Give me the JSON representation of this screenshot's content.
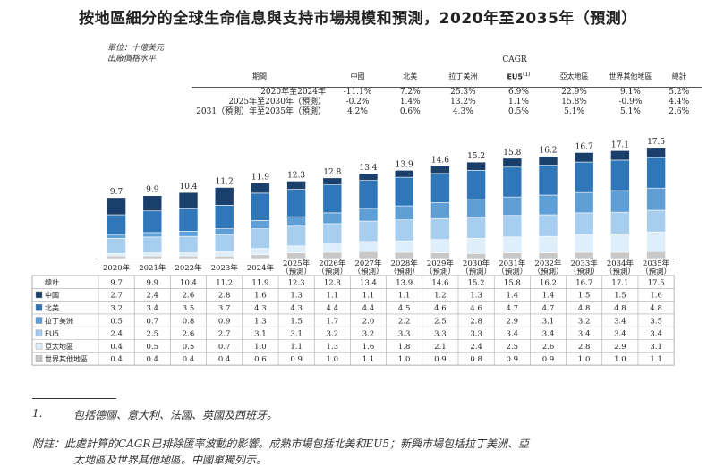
{
  "title": "按地區細分的全球生命信息與支持市場規模和預測，2020年至2035年（預測）",
  "unit_lines": [
    "單位：十億美元",
    "出廠價格水平"
  ],
  "cagr_table": {
    "group_label": "CAGR",
    "period_header": "期間",
    "columns": [
      "中國",
      "北美",
      "拉丁美洲",
      "EU5",
      "亞太地區",
      "世界其他地區",
      "總計"
    ],
    "eu5_superscript": "(1)",
    "rows": [
      {
        "period": "2020年至2024年",
        "values": [
          "-11.1%",
          "7.2%",
          "25.3%",
          "6.9%",
          "22.9%",
          "9.1%",
          "5.2%"
        ]
      },
      {
        "period": "2025年至2030年（預測）",
        "values": [
          "-0.2%",
          "1.4%",
          "13.2%",
          "1.1%",
          "15.8%",
          "-0.9%",
          "4.4%"
        ]
      },
      {
        "period": "2031（預測）年至2035年（預測）",
        "values": [
          "4.2%",
          "0.6%",
          "4.3%",
          "0.5%",
          "5.1%",
          "5.1%",
          "2.6%"
        ]
      }
    ]
  },
  "colors": {
    "中國": "#1b3f6b",
    "北美": "#2f77b9",
    "拉丁美洲": "#5f9fd6",
    "EU5": "#a7cdef",
    "亞太地區": "#deeefb",
    "世界其他地區": "#c8c8c8"
  },
  "chart_data": {
    "type": "bar",
    "stacked": true,
    "categories": [
      "2020年",
      "2021年",
      "2022年",
      "2023年",
      "2024年",
      "2025年（預測）",
      "2026年（預測）",
      "2027年（預測）",
      "2028年（預測）",
      "2029年（預測）",
      "2030年（預測）",
      "2031年（預測）",
      "2032年（預測）",
      "2033年（預測）",
      "2034年（預測）",
      "2035年（預測）"
    ],
    "totals": [
      "9.7",
      "9.9",
      "10.4",
      "11.2",
      "11.9",
      "12.3",
      "12.8",
      "13.4",
      "13.9",
      "14.6",
      "15.2",
      "15.8",
      "16.2",
      "16.7",
      "17.1",
      "17.5"
    ],
    "total_label": "總計",
    "series": [
      {
        "name": "中國",
        "values": [
          "2.7",
          "2.4",
          "2.6",
          "2.8",
          "1.6",
          "1.3",
          "1.1",
          "1.1",
          "1.1",
          "1.2",
          "1.3",
          "1.4",
          "1.4",
          "1.5",
          "1.5",
          "1.6"
        ]
      },
      {
        "name": "北美",
        "values": [
          "3.2",
          "3.4",
          "3.5",
          "3.7",
          "4.3",
          "4.3",
          "4.4",
          "4.4",
          "4.5",
          "4.6",
          "4.6",
          "4.7",
          "4.7",
          "4.8",
          "4.8",
          "4.8"
        ]
      },
      {
        "name": "拉丁美洲",
        "values": [
          "0.5",
          "0.7",
          "0.8",
          "0.9",
          "1.3",
          "1.5",
          "1.7",
          "2.0",
          "2.2",
          "2.5",
          "2.8",
          "2.9",
          "3.1",
          "3.2",
          "3.4",
          "3.5"
        ]
      },
      {
        "name": "EU5",
        "values": [
          "2.4",
          "2.5",
          "2.6",
          "2.7",
          "3.1",
          "3.1",
          "3.2",
          "3.2",
          "3.3",
          "3.3",
          "3.3",
          "3.4",
          "3.4",
          "3.4",
          "3.4",
          "3.4"
        ]
      },
      {
        "name": "亞太地區",
        "values": [
          "0.4",
          "0.5",
          "0.5",
          "0.7",
          "1.0",
          "1.1",
          "1.3",
          "1.6",
          "1.8",
          "2.1",
          "2.4",
          "2.5",
          "2.6",
          "2.8",
          "2.9",
          "3.1"
        ]
      },
      {
        "name": "世界其他地區",
        "values": [
          "0.4",
          "0.4",
          "0.4",
          "0.4",
          "0.6",
          "0.9",
          "1.0",
          "1.1",
          "1.0",
          "0.9",
          "0.8",
          "0.9",
          "0.9",
          "1.0",
          "1.0",
          "1.1"
        ]
      }
    ]
  },
  "footnotes": {
    "note1_marker": "1.",
    "note1_text": "包括德國、意大利、法國、英國及西班牙。",
    "remark_line1": "附註：此處計算的CAGR已排除匯率波動的影響。成熟市場包括北美和EU5；新興市場包括拉丁美洲、亞",
    "remark_line2": "太地區及世界其他地區。中國單獨列示。"
  }
}
